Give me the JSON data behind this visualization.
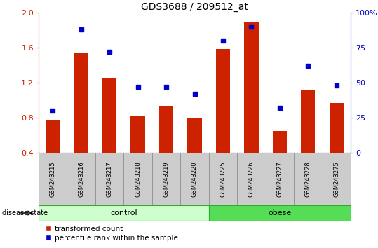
{
  "title": "GDS3688 / 209512_at",
  "samples": [
    "GSM243215",
    "GSM243216",
    "GSM243217",
    "GSM243218",
    "GSM243219",
    "GSM243220",
    "GSM243225",
    "GSM243226",
    "GSM243227",
    "GSM243228",
    "GSM243275"
  ],
  "bar_values": [
    0.77,
    1.54,
    1.25,
    0.82,
    0.93,
    0.79,
    1.58,
    1.9,
    0.65,
    1.12,
    0.97
  ],
  "dot_values_pct": [
    30,
    88,
    72,
    47,
    47,
    42,
    80,
    90,
    32,
    62,
    48
  ],
  "bar_color": "#cc2200",
  "dot_color": "#0000cc",
  "ylim_left": [
    0.4,
    2.0
  ],
  "ylim_right": [
    0,
    100
  ],
  "yticks_left": [
    0.4,
    0.8,
    1.2,
    1.6,
    2.0
  ],
  "yticks_right": [
    0,
    25,
    50,
    75,
    100
  ],
  "ytick_labels_right": [
    "0",
    "25",
    "50",
    "75",
    "100%"
  ],
  "group_labels": [
    "control",
    "obese"
  ],
  "control_samples": 6,
  "control_color": "#ccffcc",
  "obese_color": "#55dd55",
  "disease_state_label": "disease state",
  "legend_bar_label": "transformed count",
  "legend_dot_label": "percentile rank within the sample",
  "bar_bottom": 0.4,
  "bar_width": 0.5,
  "xtick_bg_color": "#cccccc",
  "title_fontsize": 10,
  "axis_fontsize": 8,
  "legend_fontsize": 7.5,
  "group_fontsize": 8,
  "sample_fontsize": 6
}
